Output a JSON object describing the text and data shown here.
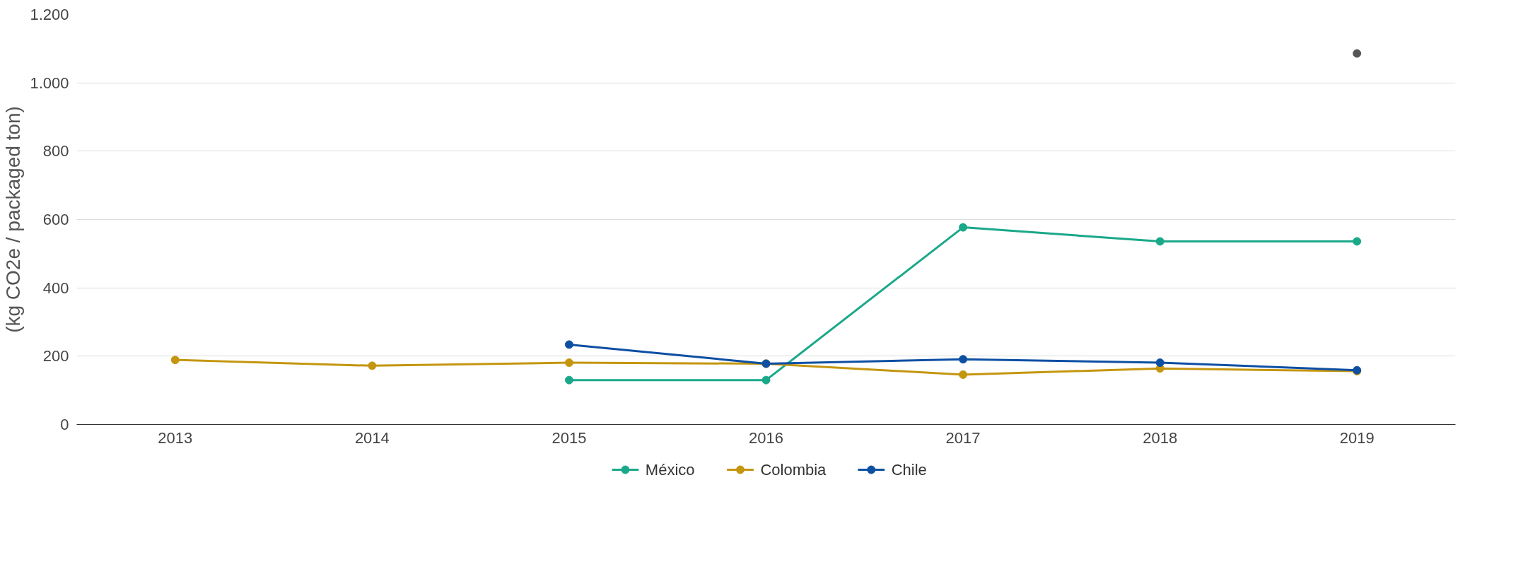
{
  "chart_data": {
    "type": "line",
    "ylabel": "(kg CO2e / packaged ton)",
    "categories": [
      "2013",
      "2014",
      "2015",
      "2016",
      "2017",
      "2018",
      "2019"
    ],
    "series": [
      {
        "name": "México",
        "color": "#1aa88a",
        "values": [
          null,
          null,
          130,
          130,
          577,
          536,
          536
        ]
      },
      {
        "name": "Colombia",
        "color": "#c4960f",
        "values": [
          189,
          172,
          181,
          178,
          146,
          164,
          156
        ]
      },
      {
        "name": "Chile",
        "color": "#0d4fa3",
        "values": [
          null,
          null,
          234,
          178,
          191,
          181,
          159
        ]
      },
      {
        "color": "#555555",
        "values": [
          null,
          null,
          null,
          null,
          null,
          null,
          1086
        ]
      }
    ],
    "ylim": [
      0,
      1200
    ],
    "yticks": [
      0,
      200,
      400,
      600,
      800,
      {
        "value": 1000,
        "label": "1.000"
      },
      {
        "value": 1200,
        "label": "1.200"
      }
    ],
    "grid": "y",
    "legend": "bottom",
    "marker": "circle",
    "line_style": "solid"
  }
}
